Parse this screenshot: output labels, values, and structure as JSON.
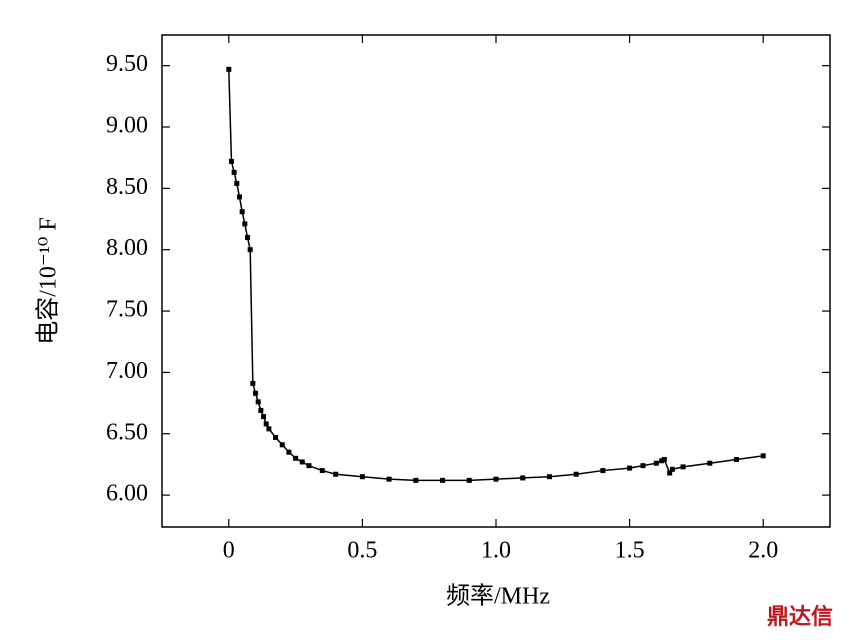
{
  "chart_data": {
    "type": "line",
    "x_label": "频率/MHz",
    "y_label": "电容/10⁻¹⁰ F",
    "watermark": "鼎达信",
    "x": [
      0,
      0.01,
      0.02,
      0.03,
      0.04,
      0.05,
      0.06,
      0.07,
      0.08,
      0.09,
      0.1,
      0.11,
      0.12,
      0.13,
      0.14,
      0.15,
      0.175,
      0.2,
      0.225,
      0.25,
      0.275,
      0.3,
      0.35,
      0.4,
      0.5,
      0.6,
      0.7,
      0.8,
      0.9,
      1.0,
      1.1,
      1.2,
      1.3,
      1.4,
      1.5,
      1.55,
      1.6,
      1.62,
      1.63,
      1.65,
      1.66,
      1.7,
      1.8,
      1.9,
      2.0
    ],
    "values": [
      9.47,
      8.72,
      8.63,
      8.54,
      8.43,
      8.31,
      8.21,
      8.1,
      8.0,
      6.91,
      6.83,
      6.76,
      6.69,
      6.64,
      6.58,
      6.54,
      6.47,
      6.41,
      6.35,
      6.3,
      6.27,
      6.24,
      6.2,
      6.17,
      6.15,
      6.13,
      6.12,
      6.12,
      6.12,
      6.13,
      6.14,
      6.15,
      6.17,
      6.2,
      6.22,
      6.24,
      6.26,
      6.28,
      6.29,
      6.18,
      6.21,
      6.23,
      6.26,
      6.29,
      6.32
    ],
    "color": "#000000",
    "xlim": [
      -0.25,
      2.25
    ],
    "ylim": [
      5.74,
      9.75
    ],
    "xticks": [
      0,
      0.5,
      {
        "value": 1,
        "label": "1.0"
      },
      {
        "value": 1.5,
        "label": "1.5"
      },
      {
        "value": 2,
        "label": "2.0"
      }
    ],
    "yticks": [
      {
        "value": 6,
        "label": "6.00"
      },
      {
        "value": 6.5,
        "label": "6.50"
      },
      {
        "value": 7,
        "label": "7.00"
      },
      {
        "value": 7.5,
        "label": "7.50"
      },
      {
        "value": 8,
        "label": "8.00"
      },
      {
        "value": 8.5,
        "label": "8.50"
      },
      {
        "value": 9,
        "label": "9.00"
      },
      {
        "value": 9.5,
        "label": "9.50"
      }
    ],
    "grid": false
  }
}
